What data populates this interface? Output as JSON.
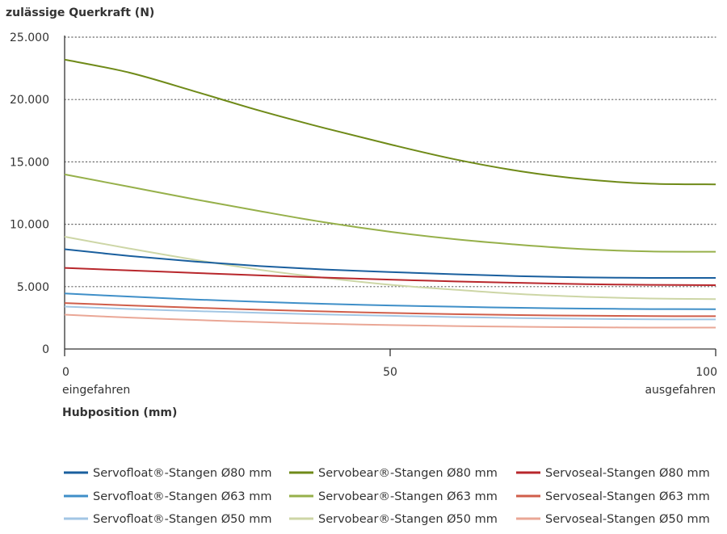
{
  "chart_data": {
    "type": "line",
    "title": "",
    "ylabel": "zulässige Querkraft (N)",
    "xlabel": "Hubposition (mm)",
    "x_start_label": "eingefahren",
    "x_end_label": "ausgefahren",
    "xlim": [
      0,
      100
    ],
    "ylim": [
      0,
      25000
    ],
    "yticks": [
      0,
      5000,
      10000,
      15000,
      20000,
      25000
    ],
    "ytick_labels": [
      "0",
      "5.000",
      "10.000",
      "15.000",
      "20.000",
      "25.000"
    ],
    "xticks": [
      0,
      50,
      100
    ],
    "xtick_labels": [
      "0",
      "50",
      "100"
    ],
    "grid": "horizontal dotted",
    "legend_position": "bottom",
    "x": [
      0,
      10,
      20,
      30,
      40,
      50,
      60,
      70,
      80,
      90,
      100
    ],
    "series": [
      {
        "name": "Servofloat®-Stangen Ø80 mm",
        "color": "#1a5f9e",
        "values": [
          8000,
          7460,
          7010,
          6650,
          6370,
          6170,
          5990,
          5840,
          5740,
          5700,
          5700
        ]
      },
      {
        "name": "Servofloat®-Stangen Ø63 mm",
        "color": "#3f8fc8",
        "values": [
          4450,
          4200,
          3970,
          3780,
          3620,
          3490,
          3390,
          3300,
          3240,
          3200,
          3190
        ]
      },
      {
        "name": "Servofloat®-Stangen Ø50 mm",
        "color": "#a2c6e4",
        "values": [
          3400,
          3210,
          3040,
          2900,
          2770,
          2660,
          2560,
          2480,
          2420,
          2380,
          2370
        ]
      },
      {
        "name": "Servobear®-Stangen Ø80 mm",
        "color": "#6f8a18",
        "values": [
          23200,
          22150,
          20650,
          19100,
          17700,
          16400,
          15200,
          14250,
          13600,
          13250,
          13200
        ]
      },
      {
        "name": "Servobear®-Stangen Ø63 mm",
        "color": "#96b04a",
        "values": [
          14000,
          13000,
          12000,
          11050,
          10150,
          9400,
          8800,
          8350,
          8000,
          7820,
          7800
        ]
      },
      {
        "name": "Servobear®-Stangen Ø50 mm",
        "color": "#cdd6a6",
        "values": [
          9000,
          8050,
          7150,
          6350,
          5700,
          5150,
          4750,
          4400,
          4180,
          4050,
          4000
        ]
      },
      {
        "name": "Servoseal-Stangen Ø80 mm",
        "color": "#b8272c",
        "values": [
          6500,
          6300,
          6100,
          5900,
          5720,
          5560,
          5420,
          5300,
          5200,
          5140,
          5120
        ]
      },
      {
        "name": "Servoseal-Stangen Ø63 mm",
        "color": "#d05e4a",
        "values": [
          3680,
          3490,
          3310,
          3150,
          3010,
          2890,
          2790,
          2720,
          2670,
          2640,
          2630
        ]
      },
      {
        "name": "Servoseal-Stangen Ø50 mm",
        "color": "#eaa796",
        "values": [
          2750,
          2520,
          2330,
          2160,
          2020,
          1920,
          1840,
          1780,
          1740,
          1720,
          1720
        ]
      }
    ]
  },
  "colors": {
    "axis": "#333333",
    "grid": "#666666",
    "text": "#333333"
  }
}
